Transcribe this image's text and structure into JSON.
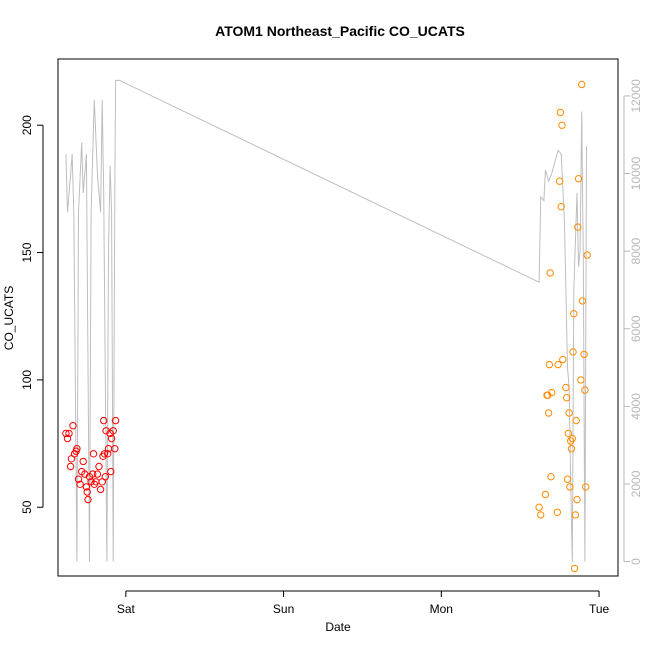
{
  "chart_data": {
    "type": "scatter",
    "title": "ATOM1 Northeast_Pacific CO_UCATS",
    "xlabel": "Date",
    "ylabel": "CO_UCATS",
    "x_unit": "days",
    "x_ticks": [
      {
        "label": "Sat",
        "value": 1
      },
      {
        "label": "Sun",
        "value": 2
      },
      {
        "label": "Mon",
        "value": 3
      },
      {
        "label": "Tue",
        "value": 4
      }
    ],
    "xlim": [
      0.57,
      4.12
    ],
    "ylim": [
      23,
      226
    ],
    "y_ticks": [
      50,
      100,
      150,
      200
    ],
    "y2_ticks": [
      0,
      2000,
      4000,
      6000,
      8000,
      10000,
      12000
    ],
    "y2lim": [
      -372,
      12952
    ],
    "grid": false,
    "legend": "none",
    "colors": {
      "series1": "#ff0000",
      "series2": "#ff8c00",
      "line": "#bebebe",
      "axis": "#000000",
      "axis_right": "#b8b8b8"
    },
    "series": [
      {
        "axis": "left",
        "color": "#ff0000",
        "points": [
          [
            0.62,
            79
          ],
          [
            0.63,
            77
          ],
          [
            0.64,
            79
          ],
          [
            0.65,
            66
          ],
          [
            0.655,
            69
          ],
          [
            0.665,
            82
          ],
          [
            0.675,
            71
          ],
          [
            0.685,
            72
          ],
          [
            0.69,
            73
          ],
          [
            0.7,
            61
          ],
          [
            0.71,
            59
          ],
          [
            0.72,
            64
          ],
          [
            0.73,
            68
          ],
          [
            0.74,
            63
          ],
          [
            0.75,
            58
          ],
          [
            0.755,
            56
          ],
          [
            0.76,
            53
          ],
          [
            0.77,
            62
          ],
          [
            0.78,
            60
          ],
          [
            0.79,
            63
          ],
          [
            0.795,
            71
          ],
          [
            0.8,
            59
          ],
          [
            0.81,
            60
          ],
          [
            0.82,
            63
          ],
          [
            0.83,
            66
          ],
          [
            0.84,
            57
          ],
          [
            0.85,
            60
          ],
          [
            0.855,
            70
          ],
          [
            0.86,
            84
          ],
          [
            0.865,
            71
          ],
          [
            0.87,
            62
          ],
          [
            0.875,
            80
          ],
          [
            0.885,
            71
          ],
          [
            0.89,
            73
          ],
          [
            0.9,
            79
          ],
          [
            0.905,
            64
          ],
          [
            0.91,
            77
          ],
          [
            0.92,
            80
          ],
          [
            0.93,
            73
          ],
          [
            0.935,
            84
          ]
        ]
      },
      {
        "axis": "left",
        "color": "#ff8c00",
        "points": [
          [
            3.62,
            50
          ],
          [
            3.63,
            47
          ],
          [
            3.66,
            55
          ],
          [
            3.67,
            94
          ],
          [
            3.675,
            94
          ],
          [
            3.68,
            87
          ],
          [
            3.685,
            106
          ],
          [
            3.69,
            142
          ],
          [
            3.695,
            62
          ],
          [
            3.7,
            95
          ],
          [
            3.735,
            48
          ],
          [
            3.74,
            106
          ],
          [
            3.75,
            178
          ],
          [
            3.755,
            205
          ],
          [
            3.76,
            168
          ],
          [
            3.765,
            200
          ],
          [
            3.77,
            108
          ],
          [
            3.79,
            97
          ],
          [
            3.795,
            93
          ],
          [
            3.8,
            61
          ],
          [
            3.805,
            79
          ],
          [
            3.81,
            87
          ],
          [
            3.815,
            58
          ],
          [
            3.82,
            76
          ],
          [
            3.825,
            73
          ],
          [
            3.83,
            77
          ],
          [
            3.835,
            111
          ],
          [
            3.84,
            126
          ],
          [
            3.845,
            26
          ],
          [
            3.85,
            47
          ],
          [
            3.855,
            84
          ],
          [
            3.86,
            53
          ],
          [
            3.865,
            160
          ],
          [
            3.87,
            179
          ],
          [
            3.885,
            100
          ],
          [
            3.89,
            216
          ],
          [
            3.895,
            131
          ],
          [
            3.905,
            110
          ],
          [
            3.91,
            96
          ],
          [
            3.915,
            58
          ],
          [
            3.925,
            149
          ]
        ]
      },
      {
        "axis": "right",
        "type": "line",
        "color": "#bebebe",
        "points": [
          [
            0.62,
            10500
          ],
          [
            0.63,
            9000
          ],
          [
            0.66,
            10500
          ],
          [
            0.67,
            9000
          ],
          [
            0.69,
            0
          ],
          [
            0.7,
            9000
          ],
          [
            0.72,
            10800
          ],
          [
            0.73,
            9500
          ],
          [
            0.75,
            10500
          ],
          [
            0.77,
            0
          ],
          [
            0.78,
            9000
          ],
          [
            0.79,
            10500
          ],
          [
            0.8,
            11900
          ],
          [
            0.82,
            10000
          ],
          [
            0.84,
            9000
          ],
          [
            0.85,
            11900
          ],
          [
            0.86,
            9500
          ],
          [
            0.88,
            0
          ],
          [
            0.89,
            8000
          ],
          [
            0.9,
            10200
          ],
          [
            0.91,
            9000
          ],
          [
            0.92,
            0
          ],
          [
            0.93,
            9500
          ],
          [
            0.935,
            12400
          ],
          [
            0.96,
            12400
          ],
          [
            3.62,
            7200
          ],
          [
            3.63,
            9400
          ],
          [
            3.65,
            9300
          ],
          [
            3.66,
            10100
          ],
          [
            3.68,
            9800
          ],
          [
            3.7,
            10000
          ],
          [
            3.72,
            10300
          ],
          [
            3.74,
            10600
          ],
          [
            3.76,
            10500
          ],
          [
            3.78,
            8800
          ],
          [
            3.79,
            7000
          ],
          [
            3.8,
            5000
          ],
          [
            3.81,
            4500
          ],
          [
            3.82,
            2000
          ],
          [
            3.83,
            0
          ],
          [
            3.84,
            7000
          ],
          [
            3.86,
            9500
          ],
          [
            3.87,
            7600
          ],
          [
            3.88,
            8000
          ],
          [
            3.89,
            11600
          ],
          [
            3.9,
            7800
          ],
          [
            3.91,
            0
          ],
          [
            3.92,
            10700
          ]
        ]
      }
    ]
  }
}
